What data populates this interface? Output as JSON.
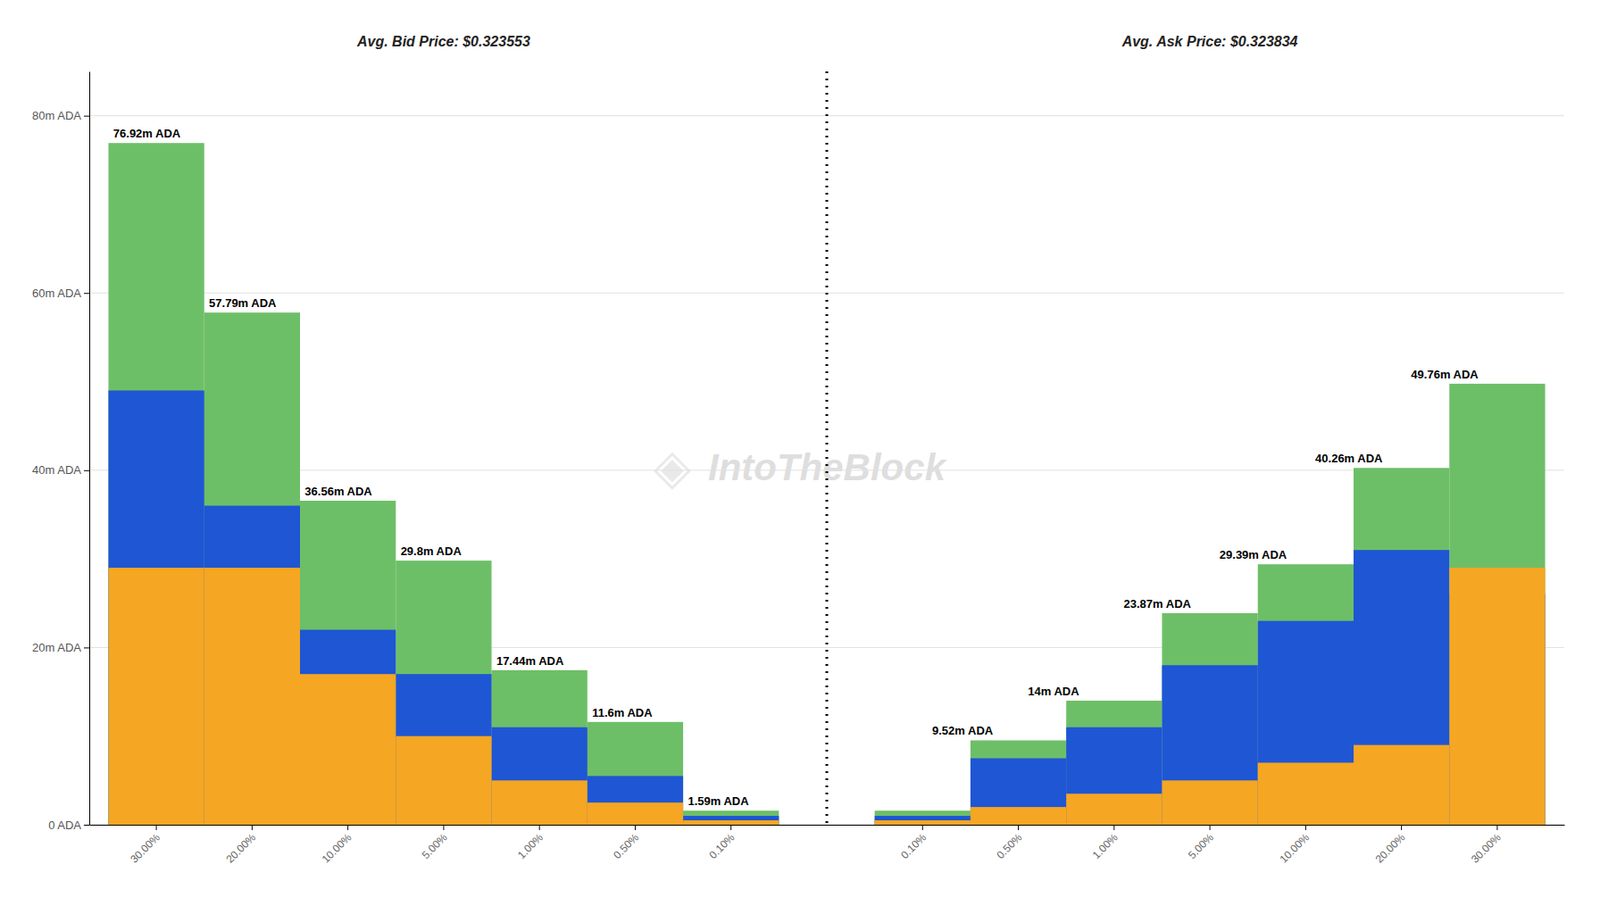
{
  "chart_data": {
    "type": "bar",
    "categories": [
      "30.00%",
      "20.00%",
      "10.00%",
      "5.00%",
      "1.00%",
      "0.50%",
      "0.10%",
      null,
      "0.10%",
      "0.50%",
      "1.00%",
      "5.00%",
      "10.00%",
      "20.00%",
      "30.00%"
    ],
    "series": [
      {
        "color": "#6dbf67",
        "values": [
          76.92,
          57.79,
          36.56,
          29.8,
          17.44,
          11.6,
          1.59,
          null,
          1.59,
          9.52,
          14.0,
          23.87,
          29.39,
          40.26,
          49.76
        ],
        "value_labels": [
          "76.92m ADA",
          "57.79m ADA",
          "36.56m ADA",
          "29.8m ADA",
          "17.44m ADA",
          "11.6m ADA",
          "1.59m ADA",
          null,
          null,
          "9.52m ADA",
          "14m ADA",
          "23.87m ADA",
          "29.39m ADA",
          "40.26m ADA",
          "49.76m ADA"
        ]
      },
      {
        "color": "#1e56d4",
        "values": [
          49.0,
          36.0,
          22.0,
          17.0,
          11.0,
          5.5,
          1.0,
          null,
          1.0,
          7.5,
          11.0,
          18.0,
          23.0,
          31.0,
          26.0
        ]
      },
      {
        "color": "#f5a623",
        "values": [
          29.0,
          29.0,
          17.0,
          10.0,
          5.0,
          2.5,
          0.5,
          null,
          0.5,
          2.0,
          3.5,
          5.0,
          7.0,
          9.0,
          29.0
        ]
      }
    ],
    "annotations": [
      "Avg. Bid Price: $0.323553",
      "Avg. Ask Price: $0.323834",
      "IntoTheBlock",
      "◈"
    ],
    "ylim": [
      0,
      85
    ],
    "yticks": [
      {
        "value": 0,
        "label": "0 ADA"
      },
      {
        "value": 20,
        "label": "20m ADA"
      },
      {
        "value": 40,
        "label": "40m ADA"
      },
      {
        "value": 60,
        "label": "60m ADA"
      },
      {
        "value": 80,
        "label": "80m ADA"
      }
    ],
    "grid": true
  }
}
